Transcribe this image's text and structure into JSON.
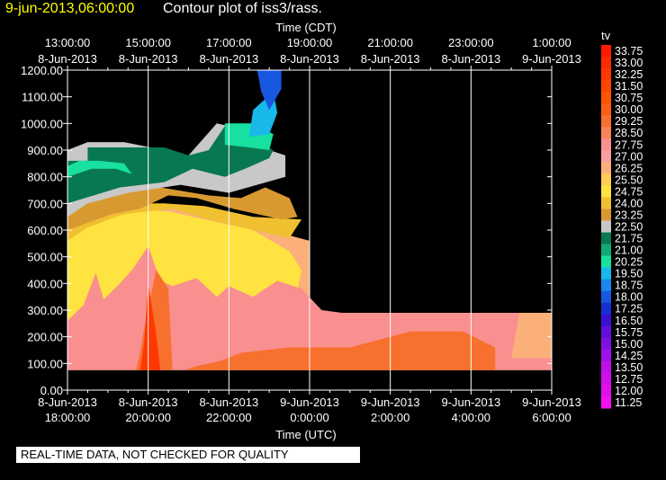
{
  "header": {
    "date_stamp": "9-jun-2013,06:00:00",
    "title": "Contour plot of iss3/rass."
  },
  "qc_banner": "REAL-TIME DATA, NOT CHECKED FOR QUALITY",
  "chart_data": {
    "type": "contour",
    "top_axis_title": "Time (CDT)",
    "bottom_axis_title": "Time (UTC)",
    "top_ticks": [
      {
        "time": "13:00:00",
        "date": "8-Jun-2013"
      },
      {
        "time": "15:00:00",
        "date": "8-Jun-2013"
      },
      {
        "time": "17:00:00",
        "date": "8-Jun-2013"
      },
      {
        "time": "19:00:00",
        "date": "8-Jun-2013"
      },
      {
        "time": "21:00:00",
        "date": "8-Jun-2013"
      },
      {
        "time": "23:00:00",
        "date": "8-Jun-2013"
      },
      {
        "time": "1:00:00",
        "date": "9-Jun-2013"
      }
    ],
    "bottom_ticks": [
      {
        "date": "8-Jun-2013",
        "time": "18:00:00"
      },
      {
        "date": "8-Jun-2013",
        "time": "20:00:00"
      },
      {
        "date": "8-Jun-2013",
        "time": "22:00:00"
      },
      {
        "date": "9-Jun-2013",
        "time": "0:00:00"
      },
      {
        "date": "9-Jun-2013",
        "time": "2:00:00"
      },
      {
        "date": "9-Jun-2013",
        "time": "4:00:00"
      },
      {
        "date": "9-Jun-2013",
        "time": "6:00:00"
      }
    ],
    "x_range_hours_utc": [
      18,
      30
    ],
    "y_ticks": [
      "0.00",
      "100.00",
      "200.00",
      "300.00",
      "400.00",
      "500.00",
      "600.00",
      "700.00",
      "800.00",
      "900.00",
      "1000.00",
      "1100.00",
      "1200.00"
    ],
    "ylim": [
      0,
      1200
    ],
    "grid": true,
    "legend_title": "tv",
    "legend_levels": [
      {
        "label": "33.75",
        "color": "#ff1a00"
      },
      {
        "label": "33.00",
        "color": "#ff2a00"
      },
      {
        "label": "32.25",
        "color": "#ff3800"
      },
      {
        "label": "31.50",
        "color": "#ff4600"
      },
      {
        "label": "30.75",
        "color": "#ff5400"
      },
      {
        "label": "30.00",
        "color": "#fb5e14"
      },
      {
        "label": "29.25",
        "color": "#f8702e"
      },
      {
        "label": "28.50",
        "color": "#f8845a"
      },
      {
        "label": "27.75",
        "color": "#f98f8f"
      },
      {
        "label": "27.00",
        "color": "#f8a0a0"
      },
      {
        "label": "26.25",
        "color": "#fbb07a"
      },
      {
        "label": "25.50",
        "color": "#ffcc55"
      },
      {
        "label": "24.75",
        "color": "#ffe340"
      },
      {
        "label": "24.00",
        "color": "#f0c030"
      },
      {
        "label": "23.25",
        "color": "#d89a30"
      },
      {
        "label": "22.50",
        "color": "#c8c8c8"
      },
      {
        "label": "21.75",
        "color": "#087850"
      },
      {
        "label": "21.00",
        "color": "#12a878"
      },
      {
        "label": "20.25",
        "color": "#18e0a0"
      },
      {
        "label": "19.50",
        "color": "#18b8e8"
      },
      {
        "label": "18.75",
        "color": "#1888f0"
      },
      {
        "label": "18.00",
        "color": "#1858e0"
      },
      {
        "label": "17.25",
        "color": "#1830d0"
      },
      {
        "label": "16.50",
        "color": "#3a10d0"
      },
      {
        "label": "15.75",
        "color": "#6010d8"
      },
      {
        "label": "15.00",
        "color": "#8010e0"
      },
      {
        "label": "14.25",
        "color": "#a010e8"
      },
      {
        "label": "13.50",
        "color": "#c010e8"
      },
      {
        "label": "12.75",
        "color": "#d010e8"
      },
      {
        "label": "12.00",
        "color": "#e010e8"
      },
      {
        "label": "11.25",
        "color": "#f010f0"
      }
    ],
    "band_colors": {
      "salmon": "#f98f8f",
      "peach": "#fbb07a",
      "yellow": "#ffe340",
      "gold": "#f0c030",
      "bronze": "#d89a30",
      "gray": "#c8c8c8",
      "dark_green": "#087850",
      "aqua": "#18e0a0",
      "sky": "#18b8e8",
      "blue": "#1858e0",
      "orange": "#f8702e",
      "red_orange": "#ff3800"
    }
  }
}
